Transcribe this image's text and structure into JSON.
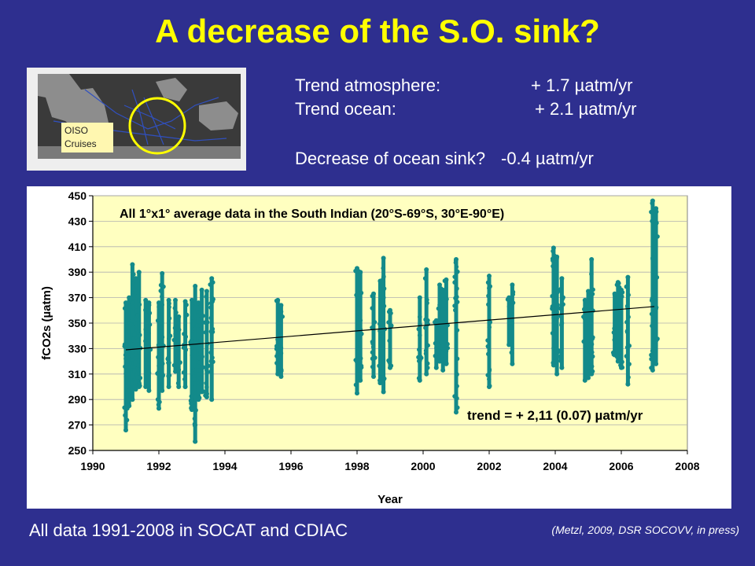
{
  "slide": {
    "title": "A decrease of the S.O. sink?",
    "map_label_line1": "OISO",
    "map_label_line2": "Cruises",
    "trend_atm_label": "Trend atmosphere:",
    "trend_atm_value": "+ 1.7 µatm/yr",
    "trend_ocean_label": "Trend ocean:",
    "trend_ocean_value": "+ 2.1 µatm/yr",
    "sink_label": "Decrease of ocean sink?",
    "sink_value": "-0.4 µatm/yr",
    "footer_left": "All data 1991-2008 in SOCAT and CDIAC",
    "footer_right": "(Metzl, 2009, DSR SOCOVV, in press)"
  },
  "colors": {
    "background": "#2e2f8f",
    "title": "#ffff00",
    "plot_bg": "#ffffc0",
    "points": "#138a8a",
    "circle": "#ffff00"
  },
  "chart_data": {
    "type": "scatter",
    "title": "All 1°x1° average data in the South Indian (20°S-69°S, 30°E-90°E)",
    "xlabel": "Year",
    "ylabel": "fCO2s (µatm)",
    "xlim": [
      1990,
      2008
    ],
    "ylim": [
      250,
      450
    ],
    "xticks": [
      1990,
      1992,
      1994,
      1996,
      1998,
      2000,
      2002,
      2004,
      2006,
      2008
    ],
    "yticks": [
      250,
      270,
      290,
      310,
      330,
      350,
      370,
      390,
      410,
      430,
      450
    ],
    "trend_annotation": "trend = + 2,11 (0.07)  µatm/yr",
    "trend_line": {
      "x": [
        1991,
        2007
      ],
      "y": [
        329,
        363
      ]
    },
    "columns": [
      {
        "x": 1991.0,
        "min": 266,
        "max": 366
      },
      {
        "x": 1991.1,
        "min": 285,
        "max": 370
      },
      {
        "x": 1991.2,
        "min": 290,
        "max": 396
      },
      {
        "x": 1991.3,
        "min": 298,
        "max": 385
      },
      {
        "x": 1991.4,
        "min": 300,
        "max": 390
      },
      {
        "x": 1991.6,
        "min": 300,
        "max": 368
      },
      {
        "x": 1991.7,
        "min": 297,
        "max": 366
      },
      {
        "x": 1992.0,
        "min": 283,
        "max": 366
      },
      {
        "x": 1992.1,
        "min": 297,
        "max": 389
      },
      {
        "x": 1992.3,
        "min": 300,
        "max": 368
      },
      {
        "x": 1992.5,
        "min": 312,
        "max": 368
      },
      {
        "x": 1992.6,
        "min": 300,
        "max": 355
      },
      {
        "x": 1992.8,
        "min": 300,
        "max": 367
      },
      {
        "x": 1993.0,
        "min": 282,
        "max": 368
      },
      {
        "x": 1993.1,
        "min": 257,
        "max": 379
      },
      {
        "x": 1993.2,
        "min": 290,
        "max": 366
      },
      {
        "x": 1993.3,
        "min": 296,
        "max": 376
      },
      {
        "x": 1993.45,
        "min": 292,
        "max": 375
      },
      {
        "x": 1993.6,
        "min": 290,
        "max": 385
      },
      {
        "x": 1995.6,
        "min": 310,
        "max": 368
      },
      {
        "x": 1995.7,
        "min": 308,
        "max": 364
      },
      {
        "x": 1998.0,
        "min": 295,
        "max": 393
      },
      {
        "x": 1998.1,
        "min": 305,
        "max": 390
      },
      {
        "x": 1998.5,
        "min": 308,
        "max": 373
      },
      {
        "x": 1998.7,
        "min": 303,
        "max": 383
      },
      {
        "x": 1998.8,
        "min": 296,
        "max": 401
      },
      {
        "x": 1999.0,
        "min": 315,
        "max": 360
      },
      {
        "x": 1999.9,
        "min": 305,
        "max": 370
      },
      {
        "x": 2000.1,
        "min": 310,
        "max": 392
      },
      {
        "x": 2000.4,
        "min": 315,
        "max": 352
      },
      {
        "x": 2000.5,
        "min": 320,
        "max": 380
      },
      {
        "x": 2000.6,
        "min": 313,
        "max": 376
      },
      {
        "x": 2000.7,
        "min": 318,
        "max": 384
      },
      {
        "x": 2001.0,
        "min": 280,
        "max": 400
      },
      {
        "x": 2002.0,
        "min": 300,
        "max": 387
      },
      {
        "x": 2002.6,
        "min": 333,
        "max": 370
      },
      {
        "x": 2002.7,
        "min": 318,
        "max": 380
      },
      {
        "x": 2003.95,
        "min": 317,
        "max": 409
      },
      {
        "x": 2004.05,
        "min": 310,
        "max": 402
      },
      {
        "x": 2004.2,
        "min": 315,
        "max": 385
      },
      {
        "x": 2004.9,
        "min": 305,
        "max": 368
      },
      {
        "x": 2005.0,
        "min": 307,
        "max": 375
      },
      {
        "x": 2005.1,
        "min": 310,
        "max": 400
      },
      {
        "x": 2005.8,
        "min": 325,
        "max": 373
      },
      {
        "x": 2005.9,
        "min": 320,
        "max": 382
      },
      {
        "x": 2006.0,
        "min": 315,
        "max": 376
      },
      {
        "x": 2006.2,
        "min": 302,
        "max": 386
      },
      {
        "x": 2006.95,
        "min": 313,
        "max": 446
      },
      {
        "x": 2007.05,
        "min": 318,
        "max": 440
      }
    ]
  }
}
